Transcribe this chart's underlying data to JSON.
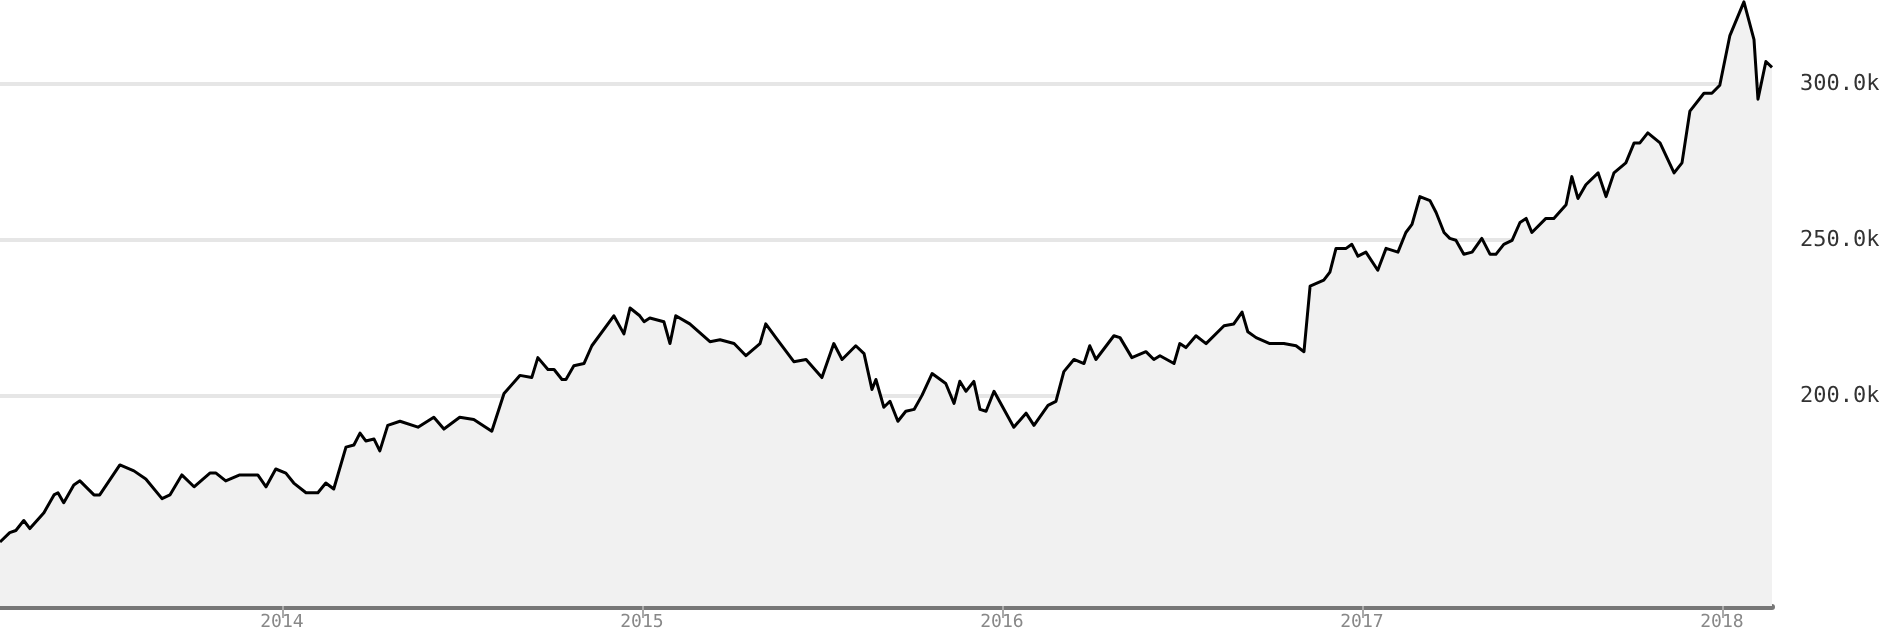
{
  "chart_data": {
    "type": "area",
    "x": [
      2013.217,
      2013.244,
      2013.261,
      2013.283,
      2013.3,
      2013.339,
      2013.367,
      2013.378,
      2013.394,
      2013.422,
      2013.439,
      2013.478,
      2013.494,
      2013.55,
      2013.589,
      2013.622,
      2013.667,
      2013.689,
      2013.722,
      2013.756,
      2013.8,
      2013.817,
      2013.844,
      2013.883,
      2013.933,
      2013.956,
      2013.983,
      2014.011,
      2014.033,
      2014.067,
      2014.1,
      2014.122,
      2014.144,
      2014.178,
      2014.2,
      2014.217,
      2014.233,
      2014.256,
      2014.272,
      2014.294,
      2014.328,
      2014.378,
      2014.422,
      2014.45,
      2014.494,
      2014.533,
      2014.583,
      2014.617,
      2014.661,
      2014.694,
      2014.711,
      2014.739,
      2014.756,
      2014.778,
      2014.789,
      2014.811,
      2014.839,
      2014.861,
      2014.922,
      2014.95,
      2014.967,
      2014.994,
      2015.006,
      2015.022,
      2015.061,
      2015.078,
      2015.094,
      2015.133,
      2015.189,
      2015.217,
      2015.256,
      2015.289,
      2015.328,
      2015.344,
      2015.372,
      2015.422,
      2015.456,
      2015.5,
      2015.533,
      2015.556,
      2015.594,
      2015.617,
      2015.639,
      2015.65,
      2015.672,
      2015.689,
      2015.711,
      2015.733,
      2015.756,
      2015.778,
      2015.806,
      2015.844,
      2015.867,
      2015.883,
      2015.9,
      2015.922,
      2015.939,
      2015.956,
      2015.978,
      2016.033,
      2016.067,
      2016.089,
      2016.128,
      2016.15,
      2016.172,
      2016.2,
      2016.228,
      2016.244,
      2016.261,
      2016.311,
      2016.328,
      2016.361,
      2016.4,
      2016.422,
      2016.439,
      2016.478,
      2016.494,
      2016.511,
      2016.539,
      2016.567,
      2016.617,
      2016.644,
      2016.667,
      2016.683,
      2016.706,
      2016.744,
      2016.783,
      2016.817,
      2016.839,
      2016.856,
      2016.894,
      2016.911,
      2016.928,
      2016.956,
      2016.972,
      2016.989,
      2017.011,
      2017.044,
      2017.067,
      2017.1,
      2017.122,
      2017.139,
      2017.161,
      2017.189,
      2017.206,
      2017.228,
      2017.244,
      2017.261,
      2017.283,
      2017.306,
      2017.333,
      2017.356,
      2017.372,
      2017.394,
      2017.417,
      2017.439,
      2017.456,
      2017.472,
      2017.511,
      2017.533,
      2017.567,
      2017.583,
      2017.6,
      2017.622,
      2017.656,
      2017.678,
      2017.7,
      2017.733,
      2017.756,
      2017.772,
      2017.794,
      2017.828,
      2017.867,
      2017.889,
      2017.911,
      2017.95,
      2017.972,
      2017.994,
      2018.022,
      2018.061,
      2018.089,
      2018.1,
      2018.122,
      2018.139
    ],
    "series": [
      {
        "color": "#000000",
        "values": [
          153000,
          156000,
          156700,
          159900,
          157300,
          162400,
          168100,
          168800,
          165600,
          171300,
          172600,
          168100,
          168100,
          177700,
          175800,
          173200,
          166900,
          168100,
          174500,
          170700,
          175100,
          175100,
          172600,
          174500,
          174500,
          170700,
          176400,
          175100,
          171900,
          168800,
          168800,
          171900,
          170000,
          183400,
          184100,
          187900,
          185400,
          186000,
          182200,
          190400,
          191700,
          189800,
          193000,
          189200,
          193000,
          192300,
          188500,
          200600,
          206400,
          205700,
          212100,
          208300,
          208300,
          205100,
          205100,
          209500,
          210200,
          215900,
          225500,
          219700,
          228000,
          225500,
          223600,
          224800,
          223600,
          216600,
          225500,
          222900,
          217200,
          217800,
          216600,
          212700,
          216600,
          222900,
          218500,
          210800,
          211500,
          205700,
          216600,
          211500,
          215900,
          213400,
          201900,
          205100,
          196200,
          198100,
          191700,
          194900,
          195500,
          200000,
          207000,
          203800,
          197400,
          204500,
          201300,
          204500,
          195500,
          194900,
          201300,
          189800,
          194300,
          190400,
          196800,
          198100,
          207600,
          211500,
          210200,
          215900,
          211500,
          219100,
          218500,
          212100,
          214000,
          211500,
          212700,
          210200,
          216600,
          215300,
          219100,
          216600,
          222300,
          222900,
          226700,
          220400,
          218500,
          216600,
          216600,
          215900,
          214000,
          235000,
          236900,
          239500,
          247100,
          247100,
          248400,
          244600,
          245900,
          240100,
          247100,
          245900,
          252200,
          254800,
          263700,
          262400,
          258600,
          252200,
          250300,
          249700,
          245200,
          245900,
          250300,
          245200,
          245200,
          248400,
          249700,
          255400,
          256700,
          252200,
          256700,
          256700,
          261100,
          270100,
          263100,
          267500,
          271300,
          263700,
          271300,
          274500,
          280900,
          280900,
          284100,
          280900,
          271300,
          274500,
          291100,
          296800,
          296800,
          299400,
          315300,
          326100,
          314000,
          294900,
          307000,
          305100
        ]
      }
    ],
    "xlim": [
      2013.217,
      2018.139
    ],
    "xticks": [
      2014,
      2015,
      2016,
      2017,
      2018
    ],
    "ylim": [
      132500,
      326700
    ],
    "yticks": [
      {
        "value": 200000,
        "label": "200.0k"
      },
      {
        "value": 250000,
        "label": "250.0k"
      },
      {
        "value": 300000,
        "label": "300.0k"
      }
    ],
    "grid": "y"
  }
}
